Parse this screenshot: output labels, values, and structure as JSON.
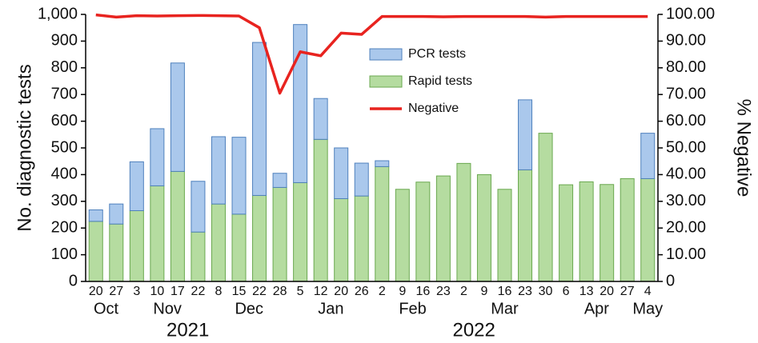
{
  "chart_data": {
    "type": "bar",
    "stacked": true,
    "y_label": "No. diagnostic tests",
    "y2_label": "% Negative",
    "categories": [
      "20",
      "27",
      "3",
      "10",
      "17",
      "22",
      "8",
      "15",
      "22",
      "28",
      "5",
      "12",
      "20",
      "26",
      "2",
      "9",
      "16",
      "23",
      "2",
      "9",
      "16",
      "23",
      "30",
      "6",
      "13",
      "20",
      "27",
      "4"
    ],
    "months": [
      "Oct",
      null,
      "Nov",
      null,
      null,
      null,
      "Dec",
      null,
      null,
      null,
      "Jan",
      null,
      null,
      null,
      "Feb",
      null,
      null,
      null,
      "Mar",
      null,
      null,
      null,
      null,
      "Apr",
      null,
      null,
      null,
      "May"
    ],
    "years": [
      "2021",
      null,
      null,
      null,
      null,
      null,
      null,
      null,
      null,
      null,
      "2022",
      null,
      null,
      null,
      null,
      null,
      null,
      null,
      null,
      null,
      null,
      null,
      null,
      null,
      null,
      null,
      null,
      null
    ],
    "series": [
      {
        "name": "Rapid tests",
        "color": "#b5dca0",
        "edge": "#6aa84f",
        "values": [
          225,
          215,
          265,
          358,
          412,
          185,
          290,
          252,
          322,
          352,
          370,
          532,
          310,
          320,
          430,
          345,
          372,
          395,
          442,
          400,
          345,
          418,
          555,
          362,
          373,
          363,
          385,
          385
        ]
      },
      {
        "name": "PCR tests",
        "color": "#aac8ec",
        "edge": "#4f81bd",
        "values": [
          43,
          75,
          183,
          214,
          406,
          190,
          252,
          288,
          573,
          53,
          592,
          153,
          190,
          123,
          22,
          0,
          0,
          0,
          0,
          0,
          0,
          262,
          0,
          0,
          0,
          0,
          0,
          170
        ]
      },
      {
        "name": "Negative",
        "color": "#e8231f",
        "type": "line",
        "axis": "y2",
        "values": [
          99.8,
          99.0,
          99.5,
          99.4,
          99.5,
          99.6,
          99.5,
          99.4,
          95.0,
          70.5,
          86.0,
          84.5,
          93.0,
          92.5,
          99.2,
          99.2,
          99.2,
          99.1,
          99.2,
          99.2,
          99.2,
          99.2,
          99.0,
          99.2,
          99.2,
          99.2,
          99.2,
          99.2
        ]
      }
    ],
    "ylim": [
      0,
      1000
    ],
    "yticks": [
      0,
      100,
      200,
      300,
      400,
      500,
      600,
      700,
      800,
      900,
      {
        "value": 1000,
        "label": "1,000"
      }
    ],
    "y2lim": [
      0,
      100
    ],
    "y2ticks": [
      0,
      {
        "value": 10,
        "label": "10.00"
      },
      {
        "value": 20,
        "label": "20.00"
      },
      {
        "value": 30,
        "label": "30.00"
      },
      {
        "value": 40,
        "label": "40.00"
      },
      {
        "value": 50,
        "label": "50.00"
      },
      {
        "value": 60,
        "label": "60.00"
      },
      {
        "value": 70,
        "label": "70.00"
      },
      {
        "value": 80,
        "label": "80.00"
      },
      {
        "value": 90,
        "label": "90.00"
      },
      {
        "value": 100,
        "label": "100.00"
      }
    ],
    "legend_order": [
      1,
      0,
      2
    ],
    "legend": "top-center"
  }
}
